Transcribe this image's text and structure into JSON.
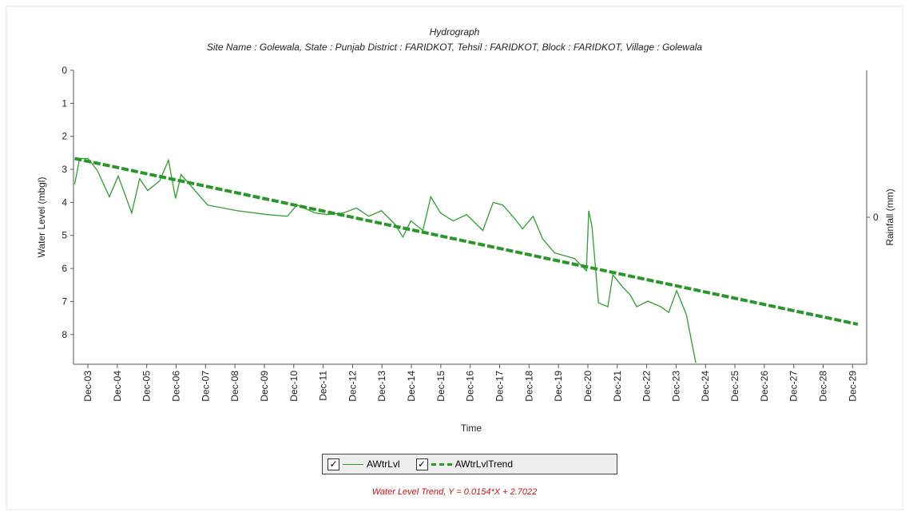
{
  "chart_data": {
    "type": "line",
    "title": "Hydrograph",
    "subtitle": "Site Name : Golewala, State : Punjab District : FARIDKOT, Tehsil : FARIDKOT, Block : FARIDKOT, Village : Golewala",
    "ylabel": "Water Level (mbgl)",
    "y2label": "Rainfall (mm)",
    "xlabel": "Time",
    "annotation": "Water Level Trend, Y = 0.0154*X + 2.7022",
    "xlim": [
      2003.43,
      2030.4
    ],
    "ylim": [
      0,
      8.9
    ],
    "y_inverted": true,
    "yticks": [
      0,
      1,
      2,
      3,
      4,
      5,
      6,
      7,
      8
    ],
    "y2lim": [
      -1,
      1
    ],
    "y2ticks": [
      0
    ],
    "xticks": [
      {
        "value": 2003.92,
        "label": "Dec-03"
      },
      {
        "value": 2004.92,
        "label": "Dec-04"
      },
      {
        "value": 2005.92,
        "label": "Dec-05"
      },
      {
        "value": 2006.92,
        "label": "Dec-06"
      },
      {
        "value": 2007.92,
        "label": "Dec-07"
      },
      {
        "value": 2008.92,
        "label": "Dec-08"
      },
      {
        "value": 2009.92,
        "label": "Dec-09"
      },
      {
        "value": 2010.92,
        "label": "Dec-10"
      },
      {
        "value": 2011.92,
        "label": "Dec-11"
      },
      {
        "value": 2012.92,
        "label": "Dec-12"
      },
      {
        "value": 2013.92,
        "label": "Dec-13"
      },
      {
        "value": 2014.92,
        "label": "Dec-14"
      },
      {
        "value": 2015.92,
        "label": "Dec-15"
      },
      {
        "value": 2016.92,
        "label": "Dec-16"
      },
      {
        "value": 2017.92,
        "label": "Dec-17"
      },
      {
        "value": 2018.92,
        "label": "Dec-18"
      },
      {
        "value": 2019.92,
        "label": "Dec-19"
      },
      {
        "value": 2020.92,
        "label": "Dec-20"
      },
      {
        "value": 2021.92,
        "label": "Dec-21"
      },
      {
        "value": 2022.92,
        "label": "Dec-22"
      },
      {
        "value": 2023.92,
        "label": "Dec-23"
      },
      {
        "value": 2024.92,
        "label": "Dec-24"
      },
      {
        "value": 2025.92,
        "label": "Dec-25"
      },
      {
        "value": 2026.92,
        "label": "Dec-26"
      },
      {
        "value": 2027.92,
        "label": "Dec-27"
      },
      {
        "value": 2028.92,
        "label": "Dec-28"
      },
      {
        "value": 2029.92,
        "label": "Dec-29"
      }
    ],
    "series": [
      {
        "name": "AWtrLvl",
        "color": "#2e9e2e",
        "dashed": false,
        "x": [
          2003.47,
          2003.64,
          2003.92,
          2004.24,
          2004.65,
          2004.95,
          2005.41,
          2005.68,
          2005.95,
          2006.36,
          2006.66,
          2006.9,
          2007.09,
          2007.99,
          2008.99,
          2010.02,
          2010.7,
          2011.03,
          2011.65,
          2012.06,
          2012.6,
          2013.06,
          2013.47,
          2013.9,
          2014.36,
          2014.63,
          2014.9,
          2015.31,
          2015.58,
          2015.91,
          2016.34,
          2016.8,
          2017.35,
          2017.7,
          2018.03,
          2018.43,
          2018.7,
          2019.06,
          2019.38,
          2019.79,
          2020.47,
          2020.87,
          2020.95,
          2021.06,
          2021.28,
          2021.6,
          2021.77,
          2022.09,
          2022.36,
          2022.58,
          2022.96,
          2023.4,
          2023.67,
          2023.94,
          2024.27,
          2024.59
        ],
        "values": [
          3.45,
          2.67,
          2.67,
          3.03,
          3.83,
          3.2,
          4.32,
          3.28,
          3.64,
          3.35,
          2.72,
          3.88,
          3.16,
          4.08,
          4.25,
          4.37,
          4.42,
          4.08,
          4.32,
          4.37,
          4.32,
          4.17,
          4.42,
          4.25,
          4.66,
          5.05,
          4.56,
          4.85,
          3.83,
          4.32,
          4.56,
          4.37,
          4.85,
          4.0,
          4.08,
          4.49,
          4.8,
          4.42,
          5.1,
          5.53,
          5.7,
          6.07,
          4.25,
          4.73,
          7.04,
          7.16,
          6.19,
          6.55,
          6.8,
          7.16,
          6.99,
          7.16,
          7.33,
          6.67,
          7.4,
          8.86
        ]
      },
      {
        "name": "AWtrLvlTrend",
        "color": "#2a962a",
        "dashed": true,
        "x": [
          2003.47,
          2030.1
        ],
        "values": [
          2.67,
          7.69
        ]
      }
    ]
  }
}
